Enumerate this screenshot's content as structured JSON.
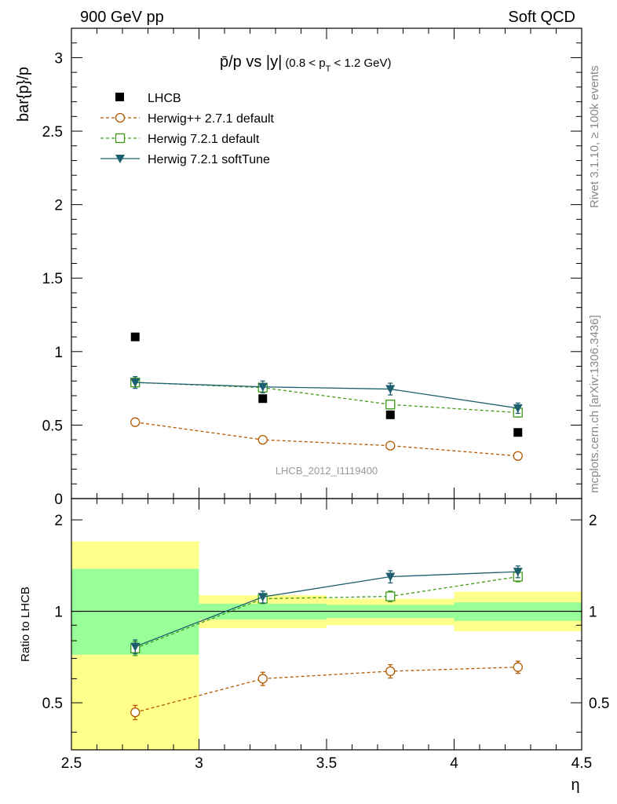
{
  "header": {
    "left": "900 GeV pp",
    "right": "Soft QCD"
  },
  "side_text": {
    "top": "Rivet 3.1.10, ≥ 100k events",
    "bottom": "mcplots.cern.ch [arXiv:1306.3436]"
  },
  "plot": {
    "title_main": "p̄/p vs |y|",
    "title_sub": "(0.8 < p",
    "title_sub_T": "T",
    "title_sub_end": " < 1.2 GeV)",
    "watermark": "LHCB_2012_I1119400"
  },
  "legend": {
    "lhcb": "LHCB",
    "herwigpp": "Herwig++ 2.7.1 default",
    "h721def": "Herwig 7.2.1 default",
    "h721soft": "Herwig 7.2.1 softTune"
  },
  "chart_data": [
    {
      "type": "scatter",
      "ylabel": "bar{p}/p",
      "xlabel": "η",
      "xlim": [
        2.5,
        4.5
      ],
      "ylim": [
        0,
        3.2
      ],
      "yticks": [
        "0",
        "0.5",
        "1",
        "1.5",
        "2",
        "2.5",
        "3"
      ],
      "x": [
        2.75,
        3.25,
        3.75,
        4.25
      ],
      "series": [
        {
          "name": "LHCB",
          "values": [
            1.1,
            0.68,
            0.57,
            0.45
          ]
        },
        {
          "name": "Herwig++ 2.7.1 default",
          "values": [
            0.52,
            0.4,
            0.36,
            0.29
          ],
          "errors": [
            0.02,
            0.015,
            0.015,
            0.012
          ]
        },
        {
          "name": "Herwig 7.2.1 default",
          "values": [
            0.79,
            0.755,
            0.64,
            0.585
          ],
          "errors": [
            0.03,
            0.03,
            0.03,
            0.03
          ]
        },
        {
          "name": "Herwig 7.2.1 softTune",
          "values": [
            0.79,
            0.76,
            0.745,
            0.615
          ],
          "errors": [
            0.04,
            0.04,
            0.04,
            0.035
          ]
        }
      ],
      "colors": {
        "lhcb": "#000000",
        "herwigpp": "#b35900",
        "h721def": "#3f9a1a",
        "h721soft": "#1d5f6f"
      }
    },
    {
      "type": "line",
      "ylabel": "Ratio to LHCB",
      "xlabel": "η",
      "xlim": [
        2.5,
        4.5
      ],
      "ylim": [
        0.35,
        2.35
      ],
      "yscale": "log",
      "yticks": [
        "0.5",
        "1",
        "2"
      ],
      "xticks": [
        "2.5",
        "3",
        "3.5",
        "4",
        "4.5"
      ],
      "x": [
        2.75,
        3.25,
        3.75,
        4.25
      ],
      "bands": [
        {
          "x": [
            2.5,
            3.0
          ],
          "green": [
            0.72,
            1.38
          ],
          "yellow": [
            0.35,
            1.7
          ]
        },
        {
          "x": [
            3.0,
            3.5
          ],
          "green": [
            0.94,
            1.06
          ],
          "yellow": [
            0.88,
            1.13
          ]
        },
        {
          "x": [
            3.5,
            4.0
          ],
          "green": [
            0.95,
            1.05
          ],
          "yellow": [
            0.9,
            1.1
          ]
        },
        {
          "x": [
            4.0,
            4.5
          ],
          "green": [
            0.93,
            1.07
          ],
          "yellow": [
            0.86,
            1.16
          ]
        }
      ],
      "series": [
        {
          "name": "Herwig++ 2.7.1 default",
          "values": [
            0.465,
            0.6,
            0.635,
            0.655
          ],
          "errors": [
            0.025,
            0.03,
            0.032,
            0.03
          ]
        },
        {
          "name": "Herwig 7.2.1 default",
          "values": [
            0.755,
            1.1,
            1.12,
            1.3
          ],
          "errors": [
            0.04,
            0.04,
            0.045,
            0.05
          ]
        },
        {
          "name": "Herwig 7.2.1 softTune",
          "values": [
            0.765,
            1.115,
            1.3,
            1.35
          ],
          "errors": [
            0.04,
            0.05,
            0.06,
            0.06
          ]
        }
      ]
    }
  ]
}
